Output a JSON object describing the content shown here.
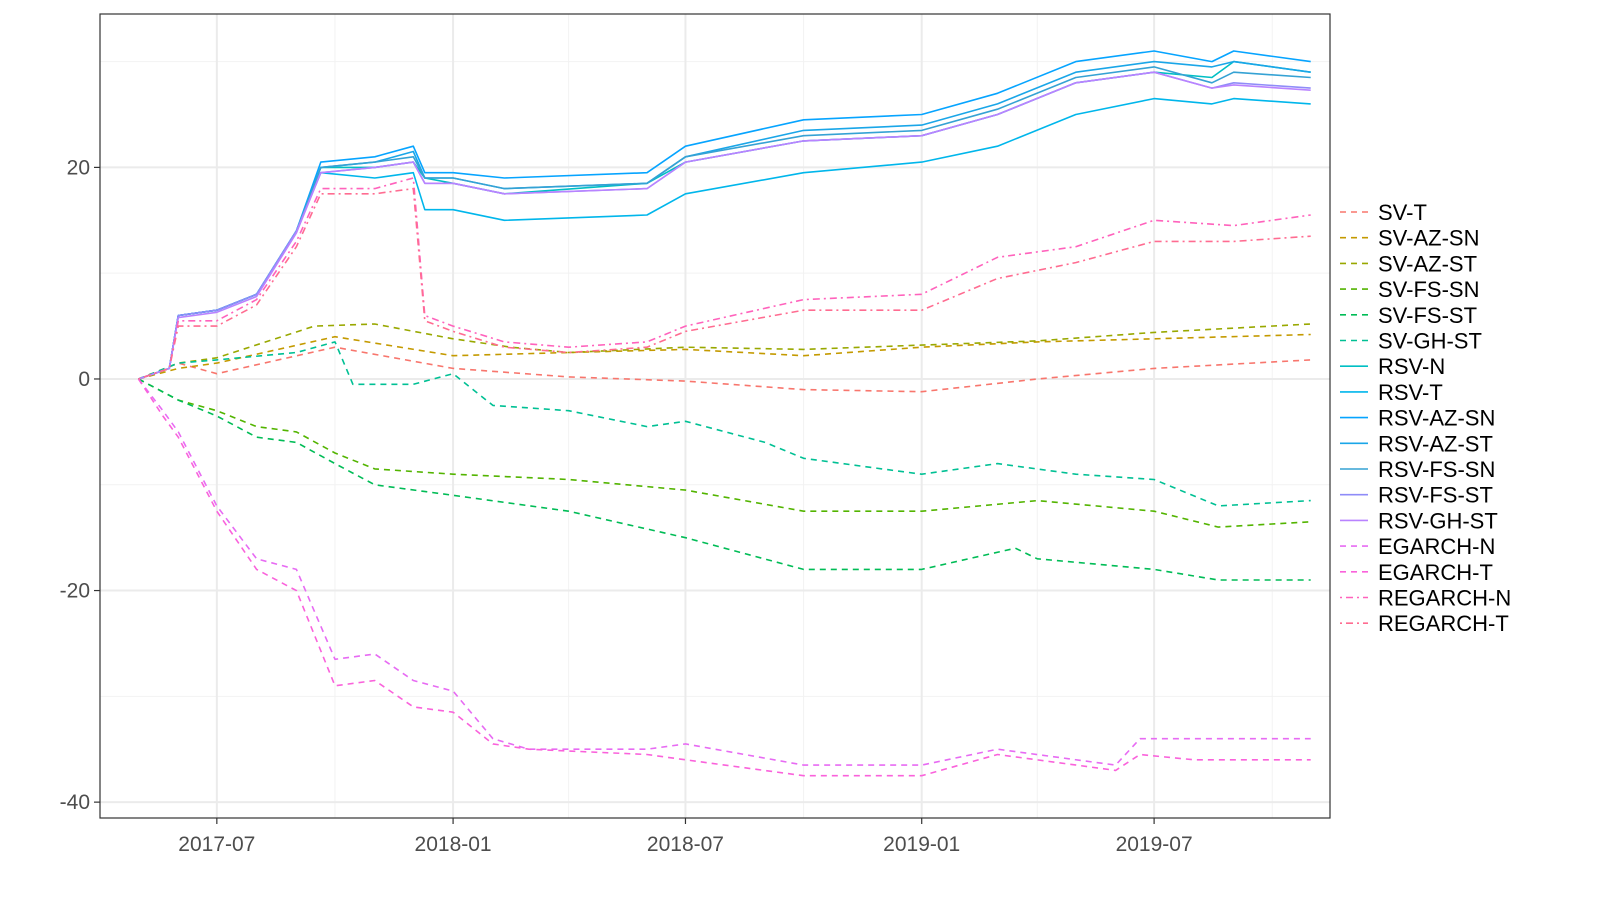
{
  "chart_data": {
    "type": "line",
    "x_axis": {
      "type": "date",
      "range": [
        "2017-04-01",
        "2019-11-15"
      ],
      "ticks": [
        "2017-07",
        "2018-01",
        "2018-07",
        "2019-01",
        "2019-07"
      ],
      "tick_dates": [
        "2017-07-01",
        "2018-01-01",
        "2018-07-01",
        "2019-01-01",
        "2019-07-01"
      ],
      "minor_dates": [
        "2017-04-01",
        "2017-10-01",
        "2018-04-01",
        "2018-10-01",
        "2019-04-01",
        "2019-10-01"
      ]
    },
    "y_axis": {
      "range": [
        -41.5,
        34.5
      ],
      "ticks": [
        -40,
        -20,
        0,
        20
      ],
      "tick_labels": [
        "-40",
        "-20",
        "0",
        "20"
      ],
      "minor": [
        -30,
        -10,
        10,
        30
      ]
    },
    "grid": true,
    "legend_position": "right",
    "series": [
      {
        "name": "SV-T",
        "color": "#F8766D",
        "dash": "dashed",
        "x": [
          "2017-05-01",
          "2017-06-01",
          "2017-07-01",
          "2017-10-01",
          "2018-01-01",
          "2018-04-01",
          "2018-07-01",
          "2018-10-01",
          "2019-01-01",
          "2019-04-01",
          "2019-07-01",
          "2019-10-31"
        ],
        "y": [
          0,
          1.5,
          0.5,
          3.0,
          1.0,
          0.2,
          -0.2,
          -1.0,
          -1.2,
          0.0,
          1.0,
          1.8
        ]
      },
      {
        "name": "SV-AZ-SN",
        "color": "#C49A00",
        "dash": "dashed",
        "x": [
          "2017-05-01",
          "2017-06-01",
          "2017-07-01",
          "2017-10-01",
          "2018-01-01",
          "2018-04-01",
          "2018-07-01",
          "2018-10-01",
          "2019-01-01",
          "2019-04-01",
          "2019-07-01",
          "2019-10-31"
        ],
        "y": [
          0,
          1.0,
          1.5,
          4.0,
          2.2,
          2.5,
          2.8,
          2.2,
          3.0,
          3.5,
          3.8,
          4.2
        ]
      },
      {
        "name": "SV-AZ-ST",
        "color": "#99A800",
        "dash": "dashed",
        "x": [
          "2017-05-01",
          "2017-06-01",
          "2017-07-01",
          "2017-09-15",
          "2017-11-01",
          "2018-01-01",
          "2018-02-15",
          "2018-04-01",
          "2018-07-01",
          "2018-10-01",
          "2019-01-01",
          "2019-04-01",
          "2019-07-01",
          "2019-10-31"
        ],
        "y": [
          0,
          1.5,
          2.0,
          5.0,
          5.2,
          3.8,
          3.0,
          2.5,
          3.0,
          2.8,
          3.2,
          3.6,
          4.4,
          5.2
        ]
      },
      {
        "name": "SV-FS-SN",
        "color": "#53B400",
        "dash": "dashed",
        "x": [
          "2017-05-01",
          "2017-06-01",
          "2017-07-01",
          "2017-08-01",
          "2017-09-01",
          "2017-10-01",
          "2017-11-01",
          "2018-01-01",
          "2018-04-01",
          "2018-07-01",
          "2018-10-01",
          "2019-01-01",
          "2019-04-01",
          "2019-07-01",
          "2019-08-20",
          "2019-10-31"
        ],
        "y": [
          0,
          -2.0,
          -3.0,
          -4.5,
          -5.0,
          -7.0,
          -8.5,
          -9.0,
          -9.5,
          -10.5,
          -12.5,
          -12.5,
          -11.5,
          -12.5,
          -14.0,
          -13.5
        ]
      },
      {
        "name": "SV-FS-ST",
        "color": "#00BC56",
        "dash": "dashed",
        "x": [
          "2017-05-01",
          "2017-06-01",
          "2017-07-01",
          "2017-08-01",
          "2017-09-01",
          "2017-10-01",
          "2017-11-01",
          "2018-01-01",
          "2018-04-01",
          "2018-07-01",
          "2018-10-01",
          "2019-01-01",
          "2019-03-15",
          "2019-04-01",
          "2019-07-01",
          "2019-08-20",
          "2019-10-31"
        ],
        "y": [
          0,
          -2.0,
          -3.5,
          -5.5,
          -6.0,
          -8.0,
          -10.0,
          -11.0,
          -12.5,
          -15.0,
          -18.0,
          -18.0,
          -16.0,
          -17.0,
          -18.0,
          -19.0,
          -19.0
        ]
      },
      {
        "name": "SV-GH-ST",
        "color": "#00C094",
        "dash": "dashed",
        "x": [
          "2017-05-01",
          "2017-06-01",
          "2017-07-01",
          "2017-09-01",
          "2017-10-01",
          "2017-10-15",
          "2017-12-01",
          "2018-01-01",
          "2018-02-01",
          "2018-04-01",
          "2018-06-01",
          "2018-07-01",
          "2018-09-01",
          "2018-10-01",
          "2018-12-01",
          "2019-01-01",
          "2019-03-01",
          "2019-05-01",
          "2019-07-01",
          "2019-08-20",
          "2019-10-31"
        ],
        "y": [
          0,
          1.5,
          1.8,
          2.5,
          3.5,
          -0.5,
          -0.5,
          0.5,
          -2.5,
          -3.0,
          -4.5,
          -4.0,
          -6.0,
          -7.5,
          -8.5,
          -9.0,
          -8.0,
          -9.0,
          -9.5,
          -12.0,
          -11.5
        ]
      },
      {
        "name": "RSV-N",
        "color": "#00BFC4",
        "dash": "solid",
        "x": [
          "2017-05-01",
          "2017-05-25",
          "2017-06-01",
          "2017-07-01",
          "2017-08-01",
          "2017-09-01",
          "2017-09-20",
          "2017-11-01",
          "2017-12-01",
          "2017-12-10",
          "2018-01-01",
          "2018-02-10",
          "2018-06-01",
          "2018-07-01",
          "2018-10-01",
          "2019-01-01",
          "2019-03-01",
          "2019-05-01",
          "2019-07-01",
          "2019-08-15",
          "2019-09-01",
          "2019-10-31"
        ],
        "y": [
          0,
          1.0,
          6.0,
          6.5,
          8.0,
          14.0,
          20.0,
          20.0,
          20.5,
          19.0,
          18.5,
          17.5,
          18.5,
          20.5,
          22.5,
          23.0,
          25.0,
          28.0,
          29.0,
          28.5,
          30.0,
          29.0
        ]
      },
      {
        "name": "RSV-T",
        "color": "#00B6EB",
        "dash": "solid",
        "x": [
          "2017-05-01",
          "2017-05-25",
          "2017-06-01",
          "2017-07-01",
          "2017-08-01",
          "2017-09-01",
          "2017-09-20",
          "2017-11-01",
          "2017-12-01",
          "2017-12-10",
          "2018-01-01",
          "2018-02-10",
          "2018-06-01",
          "2018-07-01",
          "2018-10-01",
          "2019-01-01",
          "2019-03-01",
          "2019-05-01",
          "2019-07-01",
          "2019-08-15",
          "2019-09-01",
          "2019-10-31"
        ],
        "y": [
          0,
          1.0,
          6.0,
          6.5,
          8.0,
          14.0,
          19.5,
          19.0,
          19.5,
          16.0,
          16.0,
          15.0,
          15.5,
          17.5,
          19.5,
          20.5,
          22.0,
          25.0,
          26.5,
          26.0,
          26.5,
          26.0
        ]
      },
      {
        "name": "RSV-AZ-SN",
        "color": "#06A4FF",
        "dash": "solid",
        "x": [
          "2017-05-01",
          "2017-05-25",
          "2017-06-01",
          "2017-07-01",
          "2017-08-01",
          "2017-09-01",
          "2017-09-20",
          "2017-11-01",
          "2017-12-01",
          "2017-12-10",
          "2018-01-01",
          "2018-02-10",
          "2018-06-01",
          "2018-07-01",
          "2018-10-01",
          "2019-01-01",
          "2019-03-01",
          "2019-05-01",
          "2019-07-01",
          "2019-08-15",
          "2019-09-01",
          "2019-10-31"
        ],
        "y": [
          0,
          1.0,
          6.0,
          6.5,
          8.0,
          14.0,
          20.5,
          21.0,
          22.0,
          19.5,
          19.5,
          19.0,
          19.5,
          22.0,
          24.5,
          25.0,
          27.0,
          30.0,
          31.0,
          30.0,
          31.0,
          30.0
        ]
      },
      {
        "name": "RSV-AZ-ST",
        "color": "#1AA6E8",
        "dash": "solid",
        "x": [
          "2017-05-01",
          "2017-05-25",
          "2017-06-01",
          "2017-07-01",
          "2017-08-01",
          "2017-09-01",
          "2017-09-20",
          "2017-11-01",
          "2017-12-01",
          "2017-12-10",
          "2018-01-01",
          "2018-02-10",
          "2018-06-01",
          "2018-07-01",
          "2018-10-01",
          "2019-01-01",
          "2019-03-01",
          "2019-05-01",
          "2019-07-01",
          "2019-08-15",
          "2019-09-01",
          "2019-10-31"
        ],
        "y": [
          0,
          1.0,
          6.0,
          6.5,
          8.0,
          14.0,
          20.0,
          20.5,
          21.5,
          19.0,
          19.0,
          18.0,
          18.5,
          21.0,
          23.5,
          24.0,
          26.0,
          29.0,
          30.0,
          29.5,
          30.0,
          29.0
        ]
      },
      {
        "name": "RSV-FS-SN",
        "color": "#35A2D4",
        "dash": "solid",
        "x": [
          "2017-05-01",
          "2017-05-25",
          "2017-06-01",
          "2017-07-01",
          "2017-08-01",
          "2017-09-01",
          "2017-09-20",
          "2017-11-01",
          "2017-12-01",
          "2017-12-10",
          "2018-01-01",
          "2018-02-10",
          "2018-06-01",
          "2018-07-01",
          "2018-10-01",
          "2019-01-01",
          "2019-03-01",
          "2019-05-01",
          "2019-07-01",
          "2019-08-15",
          "2019-09-01",
          "2019-10-31"
        ],
        "y": [
          0,
          1.0,
          6.0,
          6.5,
          8.0,
          14.0,
          20.0,
          20.5,
          21.0,
          19.0,
          19.0,
          18.0,
          18.5,
          21.0,
          23.0,
          23.5,
          25.5,
          28.5,
          29.5,
          28.0,
          29.0,
          28.5
        ]
      },
      {
        "name": "RSV-FS-ST",
        "color": "#8F8CF8",
        "dash": "solid",
        "x": [
          "2017-05-01",
          "2017-05-25",
          "2017-06-01",
          "2017-07-01",
          "2017-08-01",
          "2017-09-01",
          "2017-09-20",
          "2017-11-01",
          "2017-12-01",
          "2017-12-10",
          "2018-01-01",
          "2018-02-10",
          "2018-06-01",
          "2018-07-01",
          "2018-10-01",
          "2019-01-01",
          "2019-03-01",
          "2019-05-01",
          "2019-07-01",
          "2019-08-15",
          "2019-09-01",
          "2019-10-31"
        ],
        "y": [
          0,
          1.0,
          6.0,
          6.5,
          8.0,
          14.0,
          19.5,
          20.0,
          20.5,
          18.5,
          18.5,
          17.5,
          18.0,
          20.5,
          22.5,
          23.0,
          25.0,
          28.0,
          29.0,
          27.5,
          28.0,
          27.5
        ]
      },
      {
        "name": "RSV-GH-ST",
        "color": "#B983FF",
        "dash": "solid",
        "x": [
          "2017-05-01",
          "2017-05-25",
          "2017-06-01",
          "2017-07-01",
          "2017-08-01",
          "2017-09-01",
          "2017-09-20",
          "2017-11-01",
          "2017-12-01",
          "2017-12-10",
          "2018-01-01",
          "2018-02-10",
          "2018-06-01",
          "2018-07-01",
          "2018-10-01",
          "2019-01-01",
          "2019-03-01",
          "2019-05-01",
          "2019-07-01",
          "2019-08-15",
          "2019-09-01",
          "2019-10-31"
        ],
        "y": [
          0,
          1.0,
          5.8,
          6.3,
          7.8,
          13.8,
          19.5,
          20.0,
          20.5,
          18.5,
          18.5,
          17.5,
          18.0,
          20.5,
          22.5,
          23.0,
          25.0,
          28.0,
          29.0,
          27.5,
          27.8,
          27.3
        ]
      },
      {
        "name": "EGARCH-N",
        "color": "#E76BF3",
        "dash": "dashed",
        "x": [
          "2017-05-01",
          "2017-05-20",
          "2017-06-01",
          "2017-07-01",
          "2017-08-01",
          "2017-09-01",
          "2017-10-01",
          "2017-11-01",
          "2017-12-01",
          "2018-01-01",
          "2018-02-01",
          "2018-03-01",
          "2018-06-01",
          "2018-07-01",
          "2018-10-01",
          "2019-01-01",
          "2019-03-01",
          "2019-06-01",
          "2019-06-20",
          "2019-08-01",
          "2019-10-31"
        ],
        "y": [
          0,
          -3.0,
          -5.0,
          -12.0,
          -17.0,
          -18.0,
          -26.5,
          -26.0,
          -28.5,
          -29.5,
          -34.0,
          -35.0,
          -35.0,
          -34.5,
          -36.5,
          -36.5,
          -35.0,
          -36.5,
          -34.0,
          -34.0,
          -34.0
        ]
      },
      {
        "name": "EGARCH-T",
        "color": "#FA62DB",
        "dash": "dashed",
        "x": [
          "2017-05-01",
          "2017-05-20",
          "2017-06-01",
          "2017-07-01",
          "2017-08-01",
          "2017-09-01",
          "2017-10-01",
          "2017-11-01",
          "2017-12-01",
          "2018-01-01",
          "2018-02-01",
          "2018-03-01",
          "2018-06-01",
          "2018-07-01",
          "2018-10-01",
          "2019-01-01",
          "2019-03-01",
          "2019-06-01",
          "2019-06-20",
          "2019-08-01",
          "2019-10-31"
        ],
        "y": [
          0,
          -3.5,
          -5.5,
          -12.5,
          -18.0,
          -20.0,
          -29.0,
          -28.5,
          -31.0,
          -31.5,
          -34.5,
          -35.0,
          -35.5,
          -36.0,
          -37.5,
          -37.5,
          -35.5,
          -37.0,
          -35.5,
          -36.0,
          -36.0
        ]
      },
      {
        "name": "REGARCH-N",
        "color": "#FF62BC",
        "dash": "dotdash",
        "x": [
          "2017-05-01",
          "2017-05-25",
          "2017-06-01",
          "2017-07-01",
          "2017-08-01",
          "2017-09-01",
          "2017-09-20",
          "2017-11-01",
          "2017-12-01",
          "2017-12-10",
          "2018-01-01",
          "2018-02-10",
          "2018-04-01",
          "2018-06-01",
          "2018-07-01",
          "2018-10-01",
          "2019-01-01",
          "2019-03-01",
          "2019-05-01",
          "2019-07-01",
          "2019-09-01",
          "2019-10-31"
        ],
        "y": [
          0,
          1.0,
          5.5,
          5.5,
          7.5,
          13.0,
          18.0,
          18.0,
          19.0,
          6.0,
          5.0,
          3.5,
          3.0,
          3.5,
          5.0,
          7.5,
          8.0,
          11.5,
          12.5,
          15.0,
          14.5,
          15.5
        ]
      },
      {
        "name": "REGARCH-T",
        "color": "#FF6C91",
        "dash": "dotdash",
        "x": [
          "2017-05-01",
          "2017-05-25",
          "2017-06-01",
          "2017-07-01",
          "2017-08-01",
          "2017-09-01",
          "2017-09-20",
          "2017-11-01",
          "2017-12-01",
          "2017-12-10",
          "2018-01-01",
          "2018-02-10",
          "2018-04-01",
          "2018-06-01",
          "2018-07-01",
          "2018-10-01",
          "2019-01-01",
          "2019-03-01",
          "2019-05-01",
          "2019-07-01",
          "2019-09-01",
          "2019-10-31"
        ],
        "y": [
          0,
          1.0,
          5.0,
          5.0,
          7.0,
          12.5,
          17.5,
          17.5,
          18.0,
          5.5,
          4.5,
          3.0,
          2.5,
          3.0,
          4.5,
          6.5,
          6.5,
          9.5,
          11.0,
          13.0,
          13.0,
          13.5
        ]
      }
    ]
  }
}
